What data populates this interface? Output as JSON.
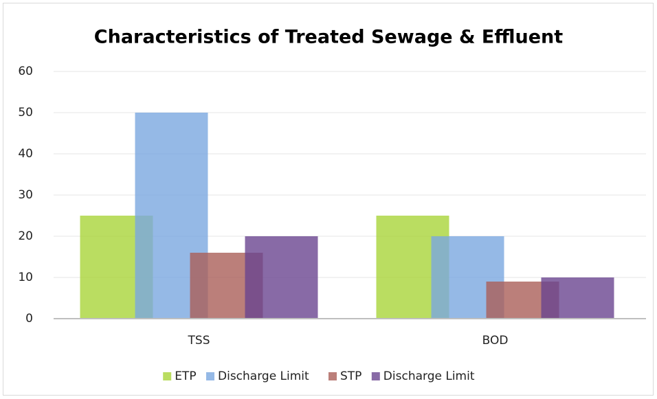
{
  "chart_data": {
    "type": "bar",
    "title": "Characteristics of Treated Sewage & Effluent",
    "categories": [
      "TSS",
      "BOD"
    ],
    "series": [
      {
        "name": "ETP",
        "color": "#a9d43a",
        "values": [
          25,
          25
        ]
      },
      {
        "name": "Discharge Limit",
        "color": "#7aa8e0",
        "values": [
          50,
          20
        ]
      },
      {
        "name": "STP",
        "color": "#aa5f59",
        "values": [
          16,
          9
        ]
      },
      {
        "name": "Discharge Limit",
        "color": "#6a4590",
        "values": [
          20,
          10
        ]
      }
    ],
    "ylim": [
      0,
      60
    ],
    "yticks": [
      0,
      10,
      20,
      30,
      40,
      50,
      60
    ],
    "grid": true,
    "legend": "bottom"
  }
}
